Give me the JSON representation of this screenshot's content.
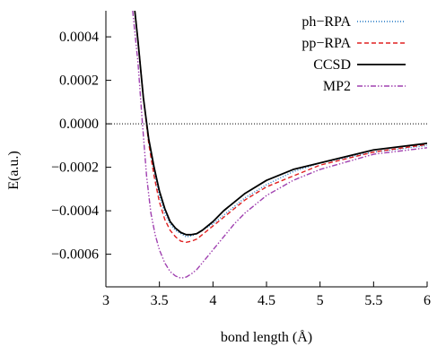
{
  "chart_data": {
    "type": "line",
    "xlabel": "bond length  (Å)",
    "ylabel": "E(a.u.)",
    "xlim": [
      3,
      6
    ],
    "ylim": [
      -0.00075,
      0.00052
    ],
    "xticks": [
      3,
      3.5,
      4,
      4.5,
      5,
      5.5,
      6
    ],
    "xtick_labels": [
      "3",
      "3.5",
      "4",
      "4.5",
      "5",
      "5.5",
      "6"
    ],
    "yticks": [
      0.0004,
      0.0002,
      0.0,
      -0.0002,
      -0.0004,
      -0.0006
    ],
    "ytick_labels": [
      "0.0004",
      "0.0002",
      "0.0000",
      "−0.0002",
      "−0.0004",
      "−0.0006"
    ],
    "zero_line": true,
    "legend_position": "top-right",
    "series": [
      {
        "name": "ph−RPA",
        "color": "#1f77c4",
        "style": "dotted",
        "x": [
          3.27,
          3.3,
          3.35,
          3.4,
          3.45,
          3.5,
          3.55,
          3.6,
          3.65,
          3.7,
          3.75,
          3.8,
          3.85,
          3.9,
          4.0,
          4.1,
          4.2,
          4.3,
          4.5,
          4.75,
          5.0,
          5.5,
          6.0
        ],
        "y": [
          0.00052,
          0.00038,
          0.00012,
          -8e-05,
          -0.00022,
          -0.00033,
          -0.00041,
          -0.00046,
          -0.00049,
          -0.000505,
          -0.00052,
          -0.000515,
          -0.000505,
          -0.00049,
          -0.00046,
          -0.00042,
          -0.00038,
          -0.00034,
          -0.00028,
          -0.00022,
          -0.00018,
          -0.00013,
          -0.0001
        ]
      },
      {
        "name": "pp−RPA",
        "color": "#e02020",
        "style": "dashed",
        "x": [
          3.27,
          3.3,
          3.35,
          3.4,
          3.45,
          3.5,
          3.55,
          3.6,
          3.65,
          3.7,
          3.75,
          3.8,
          3.85,
          3.9,
          4.0,
          4.1,
          4.2,
          4.3,
          4.5,
          4.75,
          5.0,
          5.5,
          6.0
        ],
        "y": [
          0.00052,
          0.00038,
          0.00012,
          -9e-05,
          -0.00024,
          -0.00036,
          -0.00044,
          -0.00049,
          -0.00052,
          -0.00054,
          -0.000545,
          -0.00054,
          -0.00053,
          -0.00051,
          -0.00047,
          -0.00043,
          -0.00039,
          -0.00035,
          -0.00029,
          -0.00024,
          -0.00019,
          -0.00013,
          -9.5e-05
        ]
      },
      {
        "name": "CCSD",
        "color": "#000000",
        "style": "solid",
        "x": [
          3.27,
          3.3,
          3.35,
          3.4,
          3.45,
          3.5,
          3.55,
          3.6,
          3.65,
          3.7,
          3.75,
          3.8,
          3.85,
          3.9,
          4.0,
          4.1,
          4.2,
          4.3,
          4.5,
          4.75,
          5.0,
          5.5,
          6.0
        ],
        "y": [
          0.00052,
          0.00038,
          0.00012,
          -7e-05,
          -0.0002,
          -0.00031,
          -0.00039,
          -0.00045,
          -0.00048,
          -0.0005,
          -0.00051,
          -0.00051,
          -0.000505,
          -0.00049,
          -0.00045,
          -0.0004,
          -0.00036,
          -0.00032,
          -0.00026,
          -0.00021,
          -0.00018,
          -0.00012,
          -9e-05
        ]
      },
      {
        "name": "MP2",
        "color": "#a040b0",
        "style": "dashdotdot",
        "x": [
          3.25,
          3.3,
          3.34,
          3.38,
          3.42,
          3.46,
          3.5,
          3.55,
          3.6,
          3.65,
          3.7,
          3.75,
          3.8,
          3.85,
          3.9,
          4.0,
          4.1,
          4.2,
          4.3,
          4.5,
          4.75,
          5.0,
          5.5,
          6.0
        ],
        "y": [
          0.00052,
          0.00028,
          1e-05,
          -0.00024,
          -0.00041,
          -0.00051,
          -0.00058,
          -0.00064,
          -0.00068,
          -0.0007,
          -0.00071,
          -0.000705,
          -0.00069,
          -0.00067,
          -0.00064,
          -0.00058,
          -0.00052,
          -0.00046,
          -0.00041,
          -0.00033,
          -0.00026,
          -0.00021,
          -0.00014,
          -0.00011
        ]
      }
    ]
  }
}
